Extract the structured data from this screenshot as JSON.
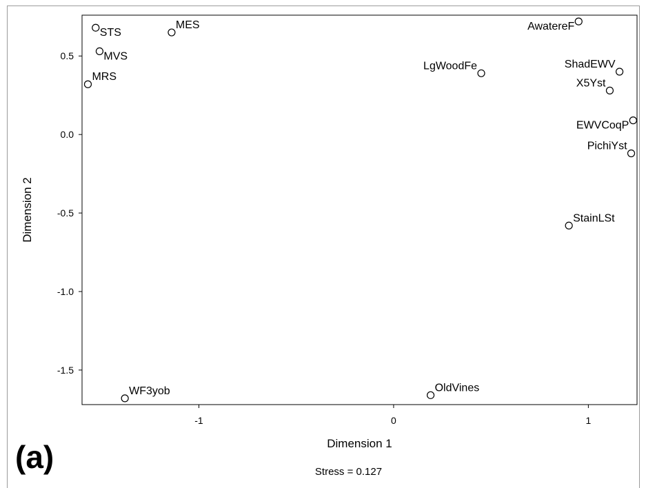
{
  "panel_label": "(a)",
  "stress_text": "Stress = 0.127",
  "chart_data": {
    "type": "scatter",
    "xlabel": "Dimension 1",
    "ylabel": "Dimension 2",
    "xlim": [
      -1.6,
      1.25
    ],
    "ylim": [
      -1.72,
      0.76
    ],
    "xticks": [
      -1,
      0,
      1
    ],
    "xtick_labels": [
      "-1",
      "0",
      "1"
    ],
    "yticks": [
      -1.5,
      -1.0,
      -0.5,
      0.0,
      0.5
    ],
    "ytick_labels": [
      "-1.5",
      "-1.0",
      "-0.5",
      "0.0",
      "0.5"
    ],
    "grid": false,
    "marker": "open-circle",
    "points": [
      {
        "label": "STS",
        "x": -1.53,
        "y": 0.68,
        "anchor": "right-below"
      },
      {
        "label": "MVS",
        "x": -1.51,
        "y": 0.53,
        "anchor": "right-below"
      },
      {
        "label": "MRS",
        "x": -1.57,
        "y": 0.32,
        "anchor": "right-above"
      },
      {
        "label": "MES",
        "x": -1.14,
        "y": 0.65,
        "anchor": "right-above"
      },
      {
        "label": "LgWoodFe",
        "x": 0.45,
        "y": 0.39,
        "anchor": "left-above"
      },
      {
        "label": "AwatereF",
        "x": 0.95,
        "y": 0.72,
        "anchor": "left-below"
      },
      {
        "label": "ShadEWV",
        "x": 1.16,
        "y": 0.4,
        "anchor": "left-above"
      },
      {
        "label": "X5Yst",
        "x": 1.11,
        "y": 0.28,
        "anchor": "left-above"
      },
      {
        "label": "EWVCoqP",
        "x": 1.23,
        "y": 0.09,
        "anchor": "left-below"
      },
      {
        "label": "PichiYst",
        "x": 1.22,
        "y": -0.12,
        "anchor": "left-above"
      },
      {
        "label": "StainLSt",
        "x": 0.9,
        "y": -0.58,
        "anchor": "right-above"
      },
      {
        "label": "WF3yob",
        "x": -1.38,
        "y": -1.68,
        "anchor": "right-above"
      },
      {
        "label": "OldVines",
        "x": 0.19,
        "y": -1.66,
        "anchor": "right-above"
      }
    ]
  }
}
